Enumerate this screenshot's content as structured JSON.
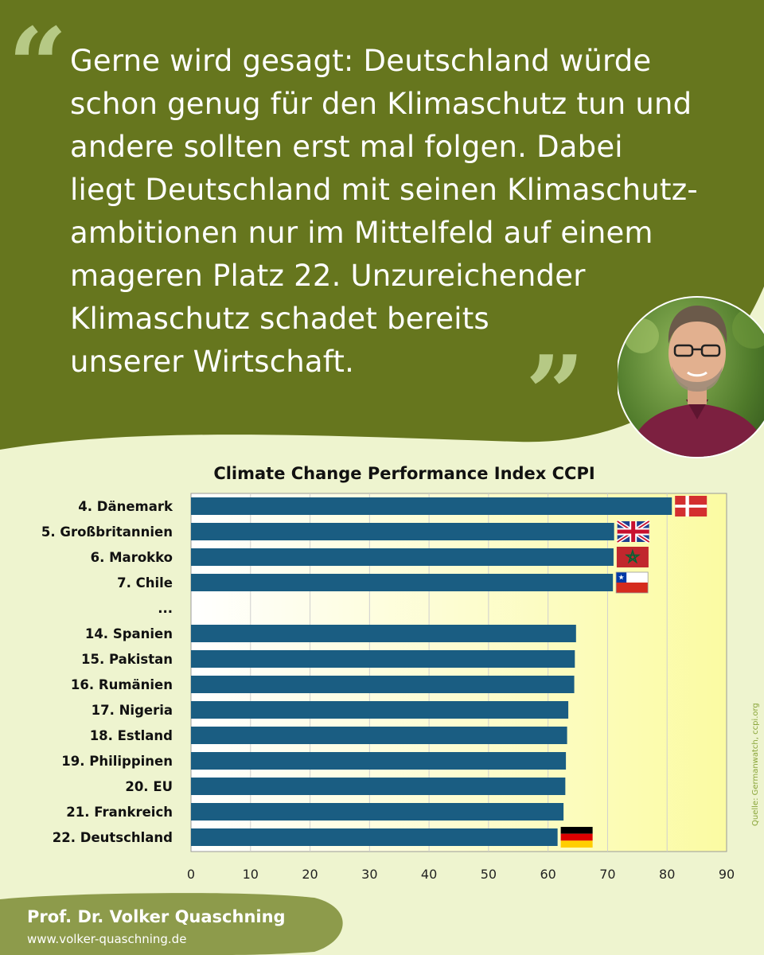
{
  "quote": {
    "lines": [
      "Gerne wird gesagt: Deutschland würde",
      "schon genug für den Klimaschutz tun und",
      "andere sollten erst mal folgen. Dabei",
      "liegt Deutschland mit seinen Klimaschutz-",
      "ambitionen nur im Mittelfeld auf einem",
      "mageren Platz 22. Unzureichender",
      "Klimaschutz schadet bereits",
      "unserer Wirtschaft."
    ],
    "open_mark": "“",
    "close_mark": "”"
  },
  "colors": {
    "header_green": "#66761e",
    "quote_mark": "#b6c985",
    "background": "#eef4cf",
    "plot_fill_left": "#ffffff",
    "plot_fill_right": "#fbfba2",
    "bar": "#1a5d82",
    "footer_green": "#8d9b4b",
    "source_text": "#8aa53a"
  },
  "chart_data": {
    "type": "bar",
    "orientation": "horizontal",
    "title": "Climate Change Performance Index CCPI",
    "categories": [
      "4. Dänemark",
      "5. Großbritannien",
      "6. Marokko",
      "7. Chile",
      "...",
      "14. Spanien",
      "15. Pakistan",
      "16. Rumänien",
      "17. Nigeria",
      "18. Estland",
      "19. Philippinen",
      "20. EU",
      "21. Frankreich",
      "22. Deutschland"
    ],
    "values": [
      80.8,
      71.1,
      71.0,
      70.9,
      null,
      64.7,
      64.5,
      64.4,
      63.4,
      63.2,
      63.0,
      62.9,
      62.6,
      61.6
    ],
    "flags": [
      "denmark-flag",
      "uk-flag",
      "morocco-flag",
      "chile-flag",
      null,
      null,
      null,
      null,
      null,
      null,
      null,
      null,
      null,
      "germany-flag"
    ],
    "xlim": [
      0,
      90
    ],
    "xticks": [
      "0",
      "10",
      "20",
      "30",
      "40",
      "50",
      "60",
      "70",
      "80",
      "90"
    ],
    "grid": "vertical",
    "xlabel": "",
    "ylabel": "",
    "source": "Quelle: Germanwatch, ccpi.org"
  },
  "footer": {
    "name": "Prof. Dr. Volker Quaschning",
    "url": "www.volker-quaschning.de"
  }
}
